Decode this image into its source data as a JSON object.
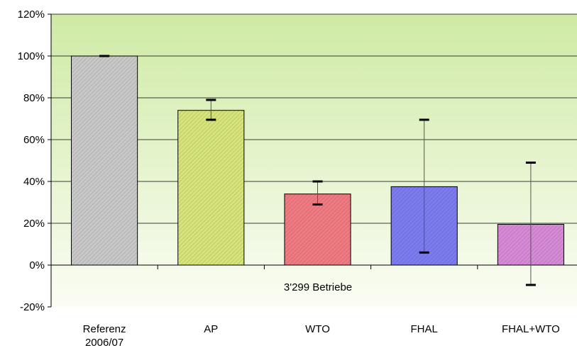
{
  "chart_data": {
    "type": "bar",
    "categories": [
      [
        "Referenz",
        "2006/07"
      ],
      [
        "AP"
      ],
      [
        "WTO"
      ],
      [
        "FHAL"
      ],
      [
        "FHAL+WTO"
      ]
    ],
    "values": [
      100,
      74,
      34,
      37.5,
      19.5
    ],
    "error_high": [
      100,
      79,
      40,
      69.5,
      49
    ],
    "error_low": [
      100,
      69.5,
      29,
      6,
      -9.5
    ],
    "bar_colors": [
      "#c8c8c8",
      "#d6e47a",
      "#f07a82",
      "#7c7cf0",
      "#d68ad6"
    ],
    "y_tick_labels": [
      "-20%",
      "0%",
      "20%",
      "40%",
      "60%",
      "80%",
      "100%",
      "120%"
    ],
    "ylim": [
      -20,
      120
    ],
    "y_unit": "%",
    "grid": true,
    "annotation": "3'299 Betriebe",
    "title": "",
    "xlabel": "",
    "ylabel": ""
  }
}
